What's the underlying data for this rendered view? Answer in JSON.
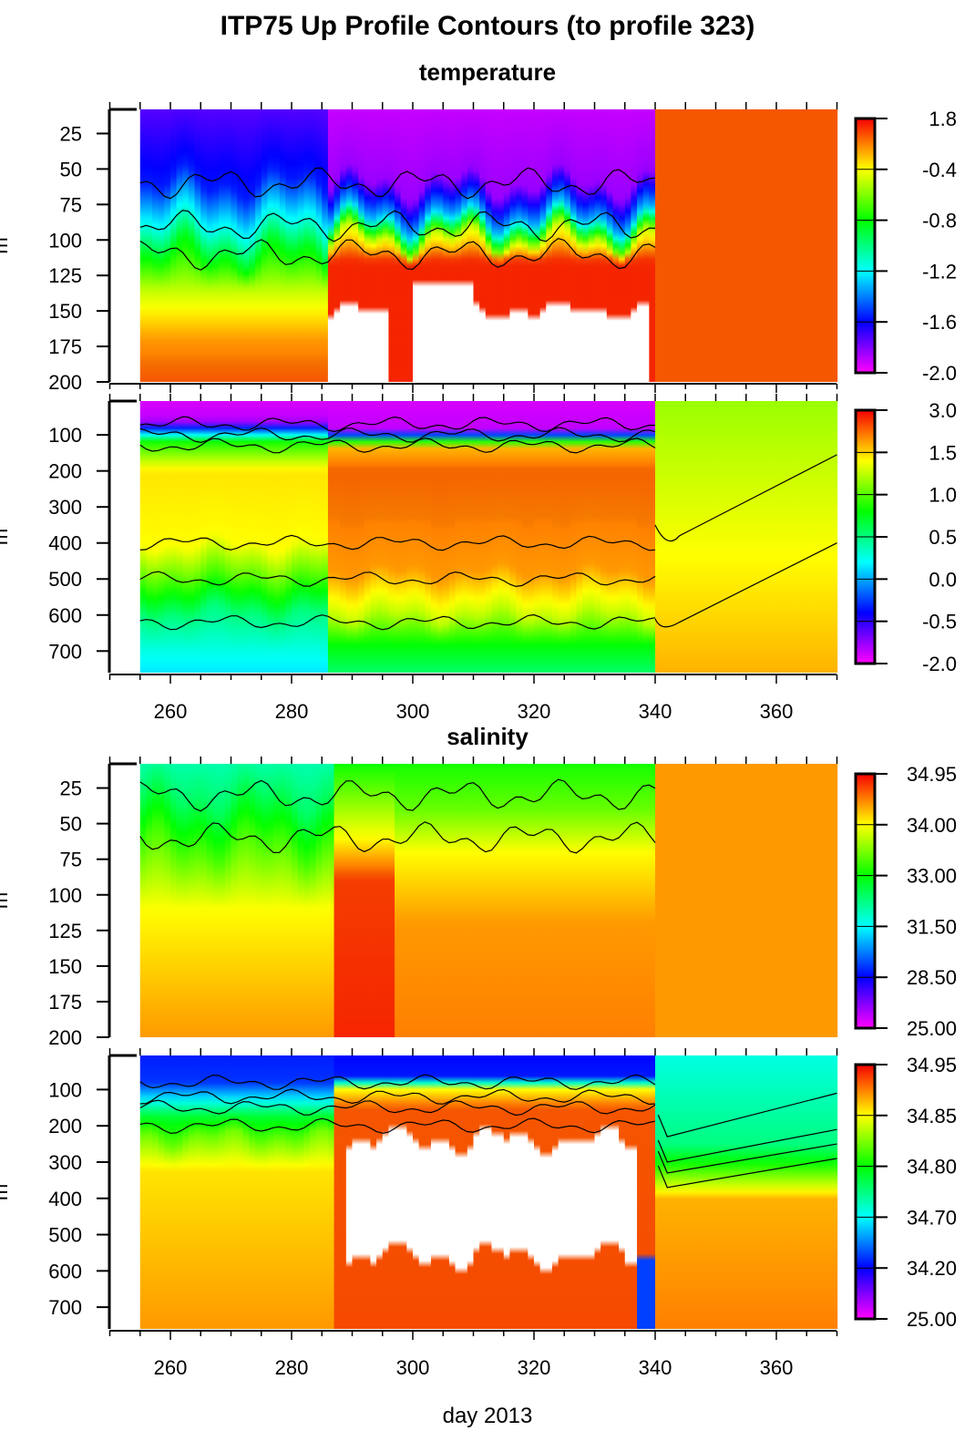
{
  "title": "ITP75 Up Profile Contours (to profile 323)",
  "chart_data": [
    {
      "type": "heatmap",
      "section_title": "temperature",
      "xlim": [
        250,
        370
      ],
      "xticks": [
        "260",
        "280",
        "300",
        "320",
        "340",
        "360"
      ],
      "ylabel": "m",
      "ylim": [
        8,
        200
      ],
      "yticks": [
        "25",
        "50",
        "75",
        "100",
        "125",
        "150",
        "175",
        "200"
      ],
      "colorbar_ticks": [
        "1.8",
        "-0.4",
        "-0.8",
        "-1.2",
        "-1.6",
        "-2.0"
      ]
    },
    {
      "type": "heatmap",
      "xlim": [
        250,
        370
      ],
      "xticks": [
        "260",
        "280",
        "300",
        "320",
        "340",
        "360"
      ],
      "ylabel": "m",
      "ylim": [
        6,
        760
      ],
      "yticks": [
        "100",
        "200",
        "300",
        "400",
        "500",
        "600",
        "700"
      ],
      "colorbar_ticks": [
        "3.0",
        "1.5",
        "1.0",
        "0.5",
        "0.0",
        "-0.5",
        "-2.0"
      ]
    },
    {
      "type": "heatmap",
      "section_title": "salinity",
      "xlim": [
        250,
        370
      ],
      "ylabel": "m",
      "ylim": [
        8,
        200
      ],
      "yticks": [
        "25",
        "50",
        "75",
        "100",
        "125",
        "150",
        "175",
        "200"
      ],
      "colorbar_ticks": [
        "34.95",
        "34.00",
        "33.00",
        "31.50",
        "28.50",
        "25.00"
      ]
    },
    {
      "type": "heatmap",
      "xlim": [
        250,
        370
      ],
      "xticks": [
        "260",
        "280",
        "300",
        "320",
        "340",
        "360"
      ],
      "xlabel": "day 2013",
      "ylabel": "m",
      "ylim": [
        6,
        760
      ],
      "yticks": [
        "100",
        "200",
        "300",
        "400",
        "500",
        "600",
        "700"
      ],
      "colorbar_ticks": [
        "34.95",
        "34.85",
        "34.80",
        "34.70",
        "34.20",
        "25.00"
      ]
    }
  ]
}
